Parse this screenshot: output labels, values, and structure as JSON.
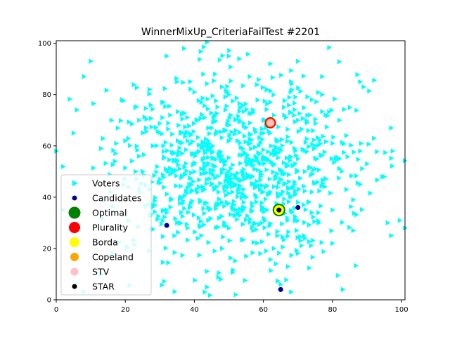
{
  "chart_data": {
    "type": "scatter",
    "title": "WinnerMixUp_CriteriaFailTest #2201",
    "xlabel": "",
    "ylabel": "",
    "xlim": [
      0,
      101
    ],
    "ylim": [
      0,
      101
    ],
    "x_ticks": [
      0,
      20,
      40,
      60,
      80,
      100
    ],
    "y_ticks": [
      0,
      20,
      40,
      60,
      80,
      100
    ],
    "grid": false,
    "legend_position": "lower-left",
    "voter_cloud": {
      "center": [
        52,
        51
      ],
      "spread": [
        17,
        18
      ],
      "count": 900
    },
    "series": [
      {
        "name": "Voters",
        "marker": "triangle-right",
        "color": "#00ffff",
        "points": [
          [
            10,
            93
          ],
          [
            37,
            98
          ],
          [
            8,
            87
          ],
          [
            32,
            95
          ],
          [
            50,
            95
          ],
          [
            53,
            94
          ],
          [
            62,
            92
          ],
          [
            70,
            93
          ],
          [
            77,
            87
          ],
          [
            88,
            85
          ],
          [
            89,
            83
          ],
          [
            97,
            67
          ],
          [
            95,
            48
          ],
          [
            96,
            30
          ],
          [
            97,
            25
          ],
          [
            101,
            28
          ],
          [
            83,
            4
          ],
          [
            65,
            6
          ],
          [
            68,
            3
          ],
          [
            52,
            2
          ],
          [
            43,
            3
          ],
          [
            13,
            10
          ],
          [
            8,
            3
          ],
          [
            2,
            35
          ],
          [
            0,
            58
          ],
          [
            6,
            74
          ],
          [
            5,
            65
          ],
          [
            13,
            59
          ],
          [
            28,
            60
          ],
          [
            35,
            54
          ],
          [
            46,
            52
          ],
          [
            54,
            59
          ],
          [
            59,
            57
          ],
          [
            66,
            45
          ],
          [
            75,
            51
          ],
          [
            80,
            61
          ],
          [
            82,
            70
          ],
          [
            74,
            78
          ],
          [
            61,
            82
          ],
          [
            48,
            83
          ],
          [
            40,
            81
          ],
          [
            31,
            77
          ],
          [
            24,
            70
          ],
          [
            20,
            62
          ],
          [
            23,
            50
          ],
          [
            30,
            47
          ],
          [
            36,
            40
          ],
          [
            44,
            36
          ],
          [
            52,
            33
          ],
          [
            58,
            40
          ],
          [
            70,
            38
          ],
          [
            80,
            35
          ],
          [
            86,
            39
          ],
          [
            90,
            53
          ],
          [
            92,
            63
          ],
          [
            85,
            75
          ],
          [
            77,
            80
          ],
          [
            68,
            85
          ],
          [
            56,
            87
          ],
          [
            46,
            88
          ],
          [
            35,
            85
          ],
          [
            27,
            82
          ],
          [
            19,
            78
          ],
          [
            16,
            70
          ],
          [
            17,
            54
          ],
          [
            21,
            44
          ],
          [
            28,
            37
          ],
          [
            35,
            30
          ],
          [
            42,
            25
          ],
          [
            48,
            20
          ],
          [
            55,
            17
          ],
          [
            63,
            20
          ],
          [
            72,
            24
          ],
          [
            80,
            22
          ],
          [
            86,
            27
          ],
          [
            88,
            45
          ],
          [
            60,
            65
          ],
          [
            52,
            66
          ],
          [
            44,
            62
          ],
          [
            40,
            57
          ],
          [
            45,
            45
          ],
          [
            51,
            42
          ],
          [
            56,
            48
          ],
          [
            63,
            53
          ],
          [
            69,
            59
          ],
          [
            73,
            66
          ],
          [
            66,
            72
          ],
          [
            57,
            74
          ],
          [
            49,
            74
          ],
          [
            41,
            70
          ],
          [
            36,
            65
          ],
          [
            31,
            60
          ],
          [
            33,
            49
          ],
          [
            39,
            45
          ],
          [
            48,
            38
          ],
          [
            54,
            36
          ],
          [
            61,
            35
          ],
          [
            67,
            31
          ],
          [
            74,
            42
          ],
          [
            78,
            47
          ],
          [
            82,
            55
          ],
          [
            84,
            64
          ],
          [
            70,
            70
          ],
          [
            62,
            77
          ],
          [
            50,
            80
          ],
          [
            42,
            77
          ],
          [
            33,
            72
          ],
          [
            26,
            67
          ],
          [
            24,
            56
          ],
          [
            27,
            43
          ],
          [
            32,
            34
          ],
          [
            38,
            28
          ],
          [
            44,
            31
          ],
          [
            50,
            28
          ],
          [
            57,
            27
          ],
          [
            64,
            25
          ],
          [
            76,
            30
          ],
          [
            84,
            43
          ],
          [
            88,
            58
          ],
          [
            78,
            72
          ],
          [
            64,
            62
          ],
          [
            55,
            54
          ],
          [
            47,
            57
          ],
          [
            42,
            51
          ],
          [
            50,
            47
          ],
          [
            58,
            44
          ],
          [
            66,
            49
          ],
          [
            70,
            55
          ],
          [
            75,
            60
          ],
          [
            60,
            70
          ],
          [
            53,
            70
          ],
          [
            45,
            67
          ],
          [
            38,
            62
          ],
          [
            34,
            57
          ],
          [
            40,
            50
          ],
          [
            47,
            42
          ],
          [
            55,
            40
          ],
          [
            62,
            42
          ],
          [
            69,
            45
          ],
          [
            72,
            50
          ]
        ]
      },
      {
        "name": "Candidates",
        "marker": "circle",
        "color": "#00008b",
        "points": [
          [
            32,
            29
          ],
          [
            70,
            36
          ],
          [
            65,
            4
          ]
        ]
      },
      {
        "name": "Optimal",
        "marker": "circle",
        "color": "#008000",
        "points": [
          [
            64.5,
            35
          ]
        ]
      },
      {
        "name": "Plurality",
        "marker": "circle",
        "color": "#ff0000",
        "points": [
          [
            62,
            69
          ]
        ]
      },
      {
        "name": "Borda",
        "marker": "circle",
        "color": "#ffff00",
        "points": [
          [
            64.5,
            35
          ]
        ]
      },
      {
        "name": "Copeland",
        "marker": "circle",
        "color": "#ffa500",
        "points": [
          [
            62,
            69
          ]
        ]
      },
      {
        "name": "STV",
        "marker": "circle",
        "color": "#ffc0cb",
        "points": [
          [
            62,
            69
          ]
        ]
      },
      {
        "name": "STAR",
        "marker": "circle",
        "color": "#000000",
        "points": [
          [
            64.5,
            35
          ]
        ]
      }
    ]
  }
}
